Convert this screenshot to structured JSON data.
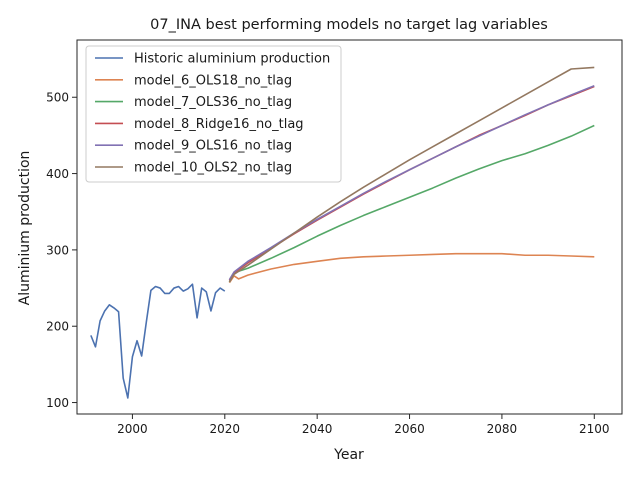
{
  "chart_data": {
    "type": "line",
    "title": "07_INA best performing models no target lag variables",
    "xlabel": "Year",
    "ylabel": "Aluminium production",
    "xlim": [
      1988,
      2106
    ],
    "ylim": [
      85,
      575
    ],
    "xticks": [
      2000,
      2020,
      2040,
      2060,
      2080,
      2100
    ],
    "yticks": [
      100,
      200,
      300,
      400,
      500
    ],
    "grid": false,
    "legend_position": "upper-left",
    "series": [
      {
        "name": "Historic aluminium production",
        "color": "#4c72b0",
        "points": [
          [
            1991,
            188
          ],
          [
            1992,
            173
          ],
          [
            1993,
            207
          ],
          [
            1994,
            220
          ],
          [
            1995,
            228
          ],
          [
            1996,
            224
          ],
          [
            1997,
            219
          ],
          [
            1998,
            132
          ],
          [
            1999,
            106
          ],
          [
            2000,
            160
          ],
          [
            2001,
            181
          ],
          [
            2002,
            161
          ],
          [
            2003,
            205
          ],
          [
            2004,
            247
          ],
          [
            2005,
            252
          ],
          [
            2006,
            250
          ],
          [
            2007,
            243
          ],
          [
            2008,
            243
          ],
          [
            2009,
            250
          ],
          [
            2010,
            252
          ],
          [
            2011,
            246
          ],
          [
            2012,
            249
          ],
          [
            2013,
            255
          ],
          [
            2014,
            211
          ],
          [
            2015,
            250
          ],
          [
            2016,
            245
          ],
          [
            2017,
            220
          ],
          [
            2018,
            244
          ],
          [
            2019,
            250
          ],
          [
            2020,
            246
          ]
        ]
      },
      {
        "name": "model_6_OLS18_no_tlag",
        "color": "#dd8452",
        "points": [
          [
            2021,
            257
          ],
          [
            2022,
            266
          ],
          [
            2023,
            262
          ],
          [
            2025,
            267
          ],
          [
            2030,
            275
          ],
          [
            2035,
            281
          ],
          [
            2040,
            285
          ],
          [
            2045,
            289
          ],
          [
            2050,
            291
          ],
          [
            2055,
            292
          ],
          [
            2060,
            293
          ],
          [
            2065,
            294
          ],
          [
            2070,
            295
          ],
          [
            2075,
            295
          ],
          [
            2080,
            295
          ],
          [
            2085,
            293
          ],
          [
            2090,
            293
          ],
          [
            2095,
            292
          ],
          [
            2100,
            291
          ]
        ]
      },
      {
        "name": "model_7_OLS36_no_tlag",
        "color": "#55a868",
        "points": [
          [
            2021,
            258
          ],
          [
            2022,
            270
          ],
          [
            2025,
            276
          ],
          [
            2030,
            289
          ],
          [
            2035,
            303
          ],
          [
            2040,
            318
          ],
          [
            2045,
            332
          ],
          [
            2050,
            345
          ],
          [
            2055,
            357
          ],
          [
            2060,
            369
          ],
          [
            2065,
            381
          ],
          [
            2070,
            394
          ],
          [
            2075,
            406
          ],
          [
            2080,
            417
          ],
          [
            2085,
            426
          ],
          [
            2090,
            437
          ],
          [
            2095,
            449
          ],
          [
            2100,
            463
          ]
        ]
      },
      {
        "name": "model_8_Ridge16_no_tlag",
        "color": "#c44e52",
        "points": [
          [
            2021,
            260
          ],
          [
            2022,
            270
          ],
          [
            2025,
            283
          ],
          [
            2030,
            302
          ],
          [
            2035,
            321
          ],
          [
            2040,
            339
          ],
          [
            2045,
            356
          ],
          [
            2050,
            373
          ],
          [
            2055,
            389
          ],
          [
            2060,
            405
          ],
          [
            2065,
            420
          ],
          [
            2070,
            435
          ],
          [
            2075,
            450
          ],
          [
            2080,
            463
          ],
          [
            2085,
            476
          ],
          [
            2090,
            490
          ],
          [
            2095,
            502
          ],
          [
            2100,
            514
          ]
        ]
      },
      {
        "name": "model_9_OLS16_no_tlag",
        "color": "#8172b3",
        "points": [
          [
            2021,
            261
          ],
          [
            2022,
            271
          ],
          [
            2025,
            285
          ],
          [
            2030,
            303
          ],
          [
            2035,
            322
          ],
          [
            2040,
            340
          ],
          [
            2045,
            357
          ],
          [
            2050,
            374
          ],
          [
            2055,
            390
          ],
          [
            2060,
            405
          ],
          [
            2065,
            420
          ],
          [
            2070,
            435
          ],
          [
            2075,
            449
          ],
          [
            2080,
            463
          ],
          [
            2085,
            477
          ],
          [
            2090,
            490
          ],
          [
            2095,
            503
          ],
          [
            2100,
            515
          ]
        ]
      },
      {
        "name": "model_10_OLS2_no_tlag",
        "color": "#937860",
        "points": [
          [
            2021,
            258
          ],
          [
            2022,
            268
          ],
          [
            2025,
            280
          ],
          [
            2030,
            301
          ],
          [
            2035,
            322
          ],
          [
            2040,
            343
          ],
          [
            2045,
            363
          ],
          [
            2050,
            382
          ],
          [
            2055,
            400
          ],
          [
            2060,
            418
          ],
          [
            2065,
            435
          ],
          [
            2070,
            452
          ],
          [
            2075,
            469
          ],
          [
            2080,
            486
          ],
          [
            2085,
            503
          ],
          [
            2090,
            520
          ],
          [
            2095,
            537
          ],
          [
            2100,
            539
          ]
        ]
      }
    ]
  }
}
